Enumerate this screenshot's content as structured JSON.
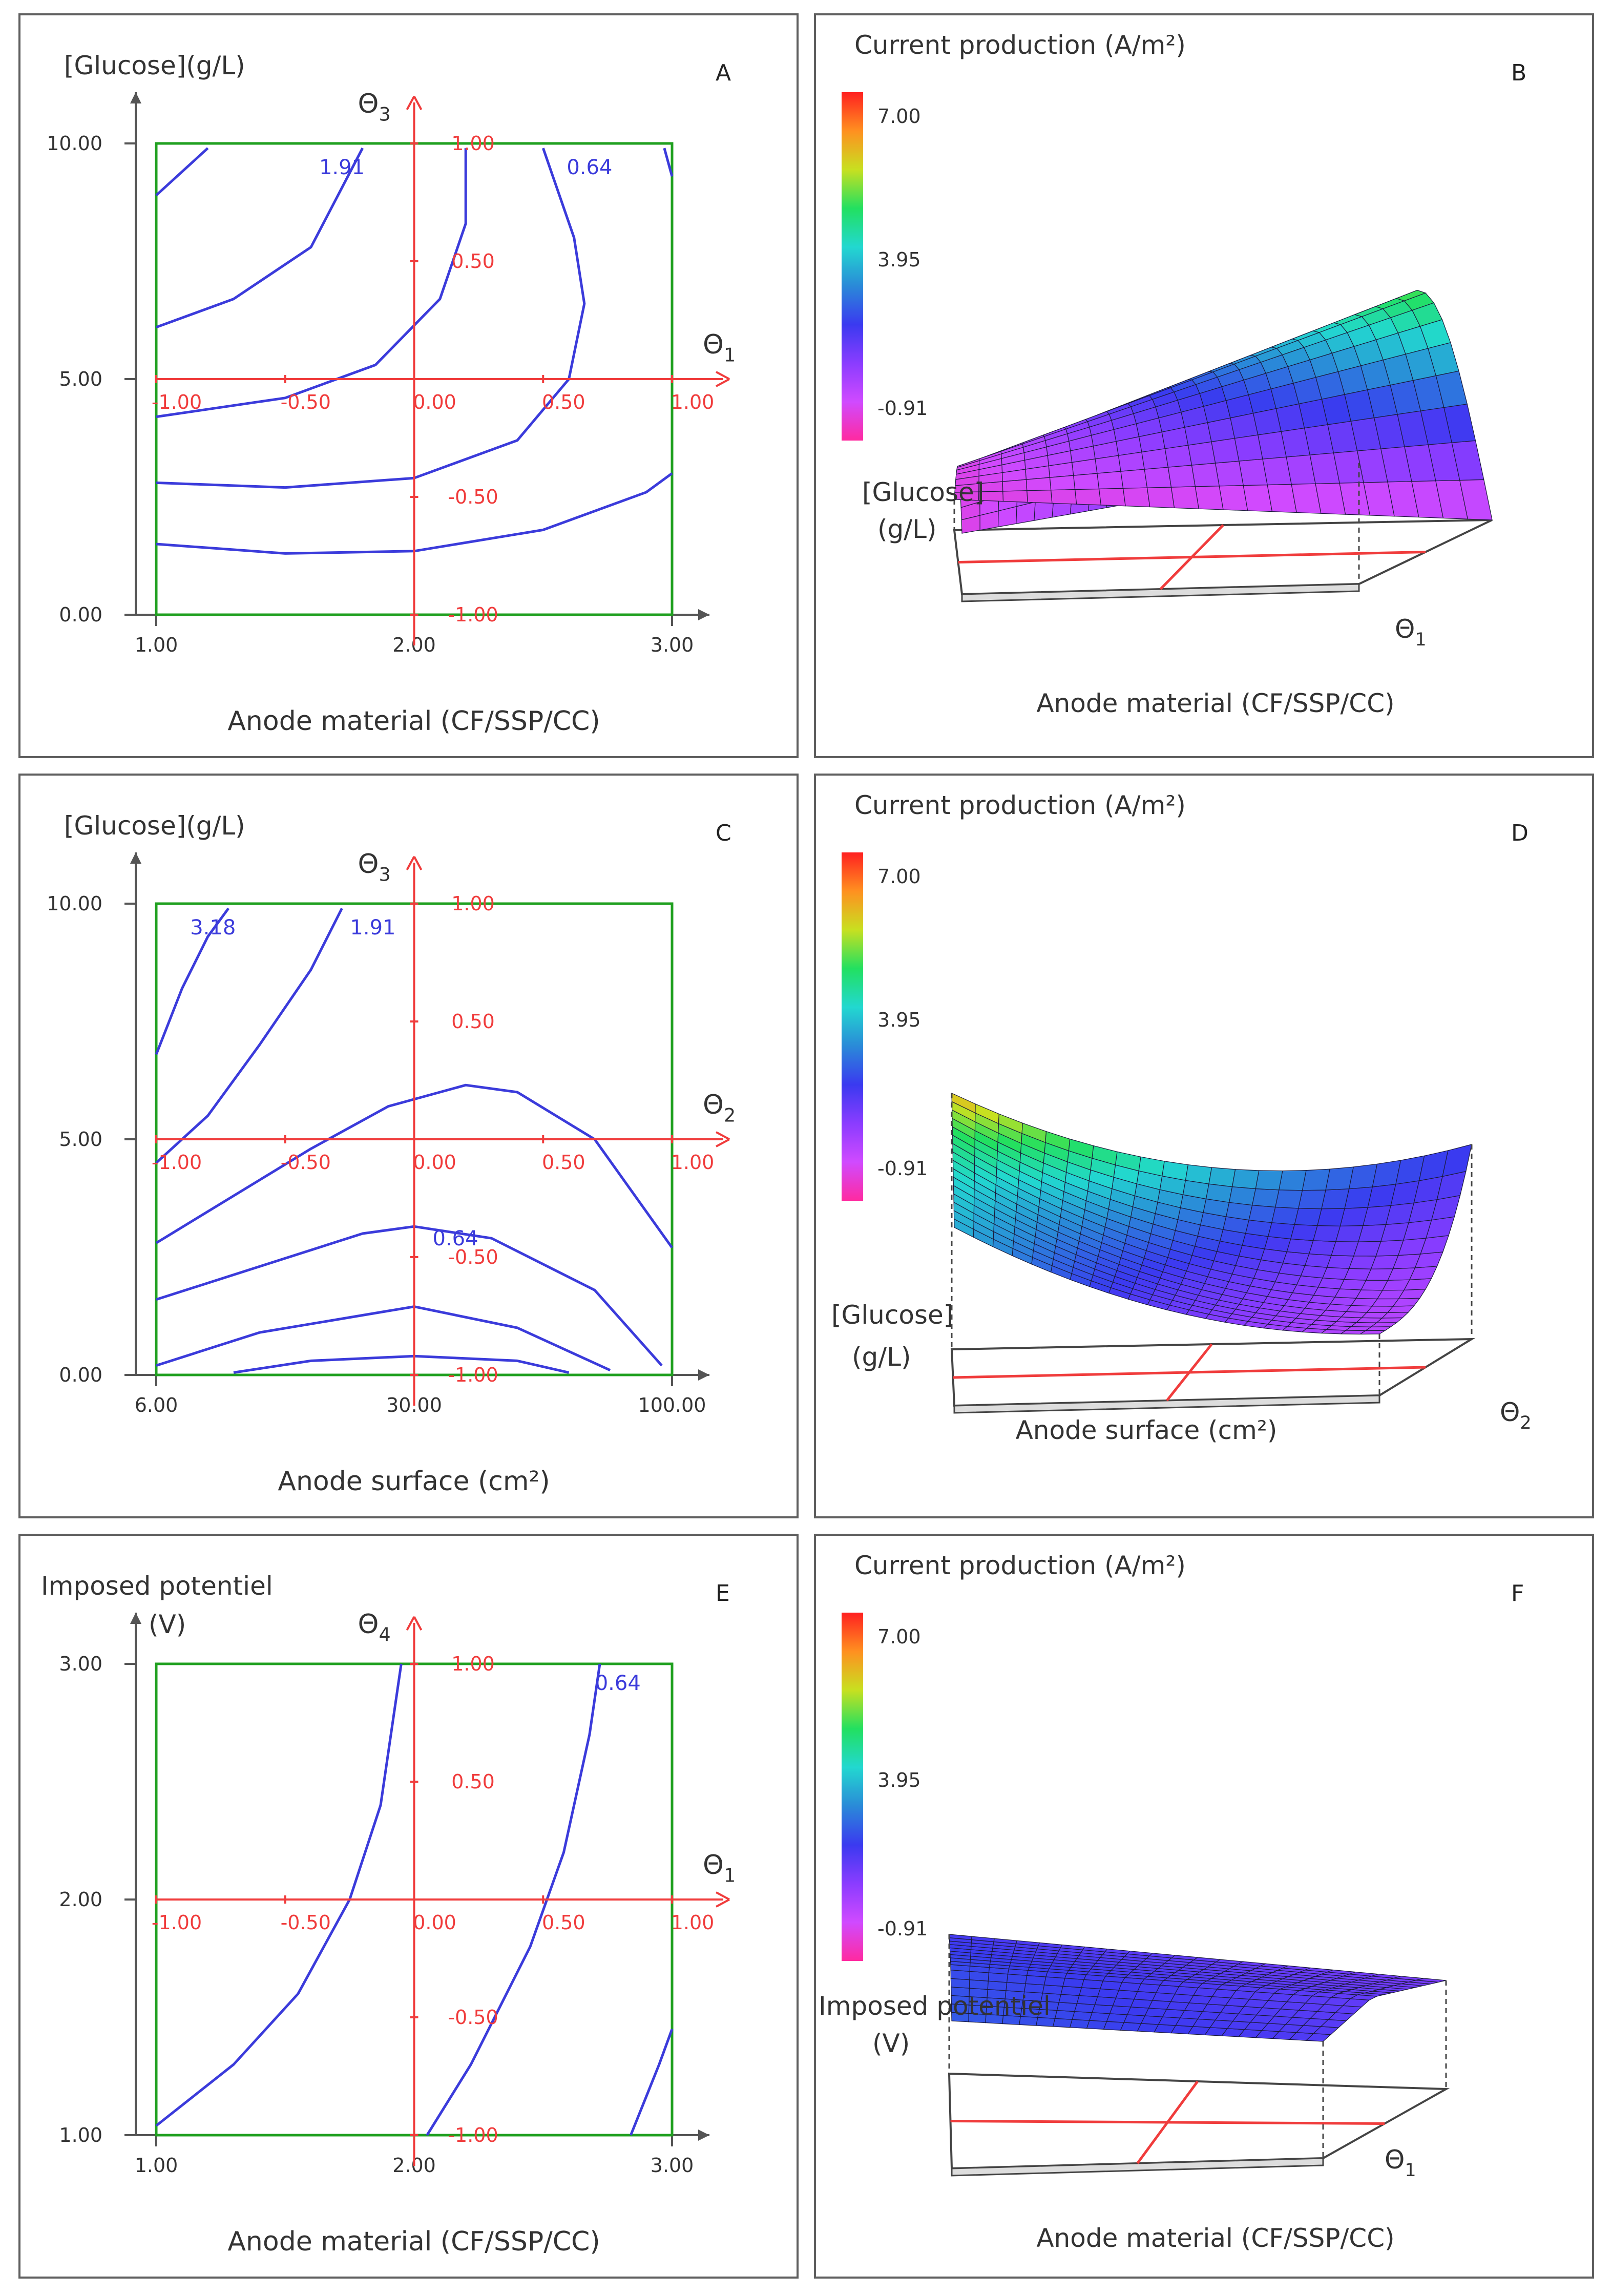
{
  "colors": {
    "frame": "#20a020",
    "contour": "#3b3bdb",
    "coded_axis": "#f03c3c",
    "axis": "#555555",
    "panel_border": "#5f5f5f",
    "colorbar": [
      "#ff2aa0",
      "#d04aff",
      "#8a3cff",
      "#3a3af0",
      "#2a8ad8",
      "#22d8d0",
      "#22e060",
      "#c8e020",
      "#ff9020",
      "#ff2020"
    ]
  },
  "chart_data": [
    {
      "panel": "A",
      "type": "contour",
      "ylabel": "[Glucose](g/L)",
      "xlabel": "Anode material (CF/SSP/CC)",
      "x_ticks": [
        "1.00",
        "2.00",
        "3.00"
      ],
      "y_ticks": [
        "0.00",
        "5.00",
        "10.00"
      ],
      "xlim": [
        1,
        3
      ],
      "ylim": [
        0,
        10
      ],
      "coded_x_label": "Θ",
      "coded_x_sub": "1",
      "coded_y_label": "Θ",
      "coded_y_sub": "3",
      "coded_x_ticks": [
        "-1.00",
        "-0.50",
        "0.00",
        "0.50",
        "1.00"
      ],
      "coded_y_ticks": [
        "-1.00",
        "-0.50",
        "0.50",
        "1.00"
      ],
      "contour_labels": [
        {
          "text": "1.91",
          "x": 1.72,
          "y": 9.5
        },
        {
          "text": "0.64",
          "x": 2.68,
          "y": 9.5
        }
      ],
      "contours": [
        [
          [
            1,
            8.9
          ],
          [
            1.2,
            9.9
          ]
        ],
        [
          [
            1,
            6.1
          ],
          [
            1.3,
            6.7
          ],
          [
            1.6,
            7.8
          ],
          [
            1.8,
            9.9
          ]
        ],
        [
          [
            1,
            4.2
          ],
          [
            1.5,
            4.6
          ],
          [
            1.85,
            5.3
          ],
          [
            2.1,
            6.7
          ],
          [
            2.2,
            8.3
          ],
          [
            2.2,
            9.9
          ]
        ],
        [
          [
            1,
            2.8
          ],
          [
            1.5,
            2.7
          ],
          [
            2.0,
            2.9
          ],
          [
            2.4,
            3.7
          ],
          [
            2.6,
            5.0
          ],
          [
            2.66,
            6.6
          ],
          [
            2.62,
            8.0
          ],
          [
            2.5,
            9.9
          ]
        ],
        [
          [
            1,
            1.5
          ],
          [
            1.5,
            1.3
          ],
          [
            2.0,
            1.35
          ],
          [
            2.5,
            1.8
          ],
          [
            2.9,
            2.6
          ],
          [
            3.0,
            3.0
          ]
        ],
        [
          [
            2.97,
            9.9
          ],
          [
            3.0,
            9.3
          ]
        ]
      ]
    },
    {
      "panel": "C",
      "type": "contour",
      "ylabel": "[Glucose](g/L)",
      "xlabel": "Anode surface (cm²)",
      "x_ticks": [
        "6.00",
        "30.00",
        "100.00"
      ],
      "y_ticks": [
        "0.00",
        "5.00",
        "10.00"
      ],
      "xlim": [
        0,
        1
      ],
      "ylim": [
        0,
        10
      ],
      "coded_x_label": "Θ",
      "coded_x_sub": "2",
      "coded_y_label": "Θ",
      "coded_y_sub": "3",
      "coded_x_ticks": [
        "-1.00",
        "-0.50",
        "0.00",
        "0.50",
        "1.00"
      ],
      "coded_y_ticks": [
        "-1.00",
        "-0.50",
        "0.50",
        "1.00"
      ],
      "contour_labels": [
        {
          "text": "3.18",
          "x": 0.11,
          "y": 9.5
        },
        {
          "text": "1.91",
          "x": 0.42,
          "y": 9.5
        }
      ],
      "inline_label": {
        "text": "0.64",
        "x": 0.58,
        "y": 2.9
      },
      "contours": [
        [
          [
            0,
            6.8
          ],
          [
            0.05,
            8.2
          ],
          [
            0.1,
            9.3
          ],
          [
            0.14,
            9.9
          ]
        ],
        [
          [
            0,
            4.5
          ],
          [
            0.1,
            5.5
          ],
          [
            0.2,
            7.0
          ],
          [
            0.3,
            8.6
          ],
          [
            0.36,
            9.9
          ]
        ],
        [
          [
            0,
            2.8
          ],
          [
            0.15,
            3.8
          ],
          [
            0.3,
            4.8
          ],
          [
            0.45,
            5.7
          ],
          [
            0.6,
            6.15
          ],
          [
            0.7,
            6.0
          ],
          [
            0.85,
            5.0
          ],
          [
            1.0,
            2.7
          ]
        ],
        [
          [
            0,
            1.6
          ],
          [
            0.2,
            2.3
          ],
          [
            0.4,
            3.0
          ],
          [
            0.5,
            3.15
          ],
          [
            0.65,
            2.9
          ],
          [
            0.85,
            1.8
          ],
          [
            0.98,
            0.2
          ]
        ],
        [
          [
            0,
            0.2
          ],
          [
            0.2,
            0.9
          ],
          [
            0.5,
            1.45
          ],
          [
            0.7,
            1.0
          ],
          [
            0.88,
            0.1
          ]
        ],
        [
          [
            0.15,
            0.05
          ],
          [
            0.3,
            0.3
          ],
          [
            0.5,
            0.4
          ],
          [
            0.7,
            0.3
          ],
          [
            0.8,
            0.05
          ]
        ]
      ]
    },
    {
      "panel": "E",
      "type": "contour",
      "ylabel": "Imposed potentiel",
      "ylabel2": "(V)",
      "xlabel": "Anode material (CF/SSP/CC)",
      "x_ticks": [
        "1.00",
        "2.00",
        "3.00"
      ],
      "y_ticks": [
        "1.00",
        "2.00",
        "3.00"
      ],
      "xlim": [
        1,
        3
      ],
      "ylim": [
        1,
        3
      ],
      "coded_x_label": "Θ",
      "coded_x_sub": "1",
      "coded_y_label": "Θ",
      "coded_y_sub": "4",
      "coded_x_ticks": [
        "-1.00",
        "-0.50",
        "0.00",
        "0.50",
        "1.00"
      ],
      "coded_y_ticks": [
        "-1.00",
        "-0.50",
        "0.50",
        "1.00"
      ],
      "contour_labels": [
        {
          "text": "0.64",
          "x": 2.79,
          "y": 2.92
        }
      ],
      "contours": [
        [
          [
            1,
            1.04
          ],
          [
            1.3,
            1.3
          ],
          [
            1.55,
            1.6
          ],
          [
            1.75,
            2.0
          ],
          [
            1.87,
            2.4
          ],
          [
            1.95,
            3.0
          ]
        ],
        [
          [
            2.05,
            1.0
          ],
          [
            2.22,
            1.3
          ],
          [
            2.45,
            1.8
          ],
          [
            2.58,
            2.2
          ],
          [
            2.68,
            2.7
          ],
          [
            2.72,
            3.0
          ]
        ],
        [
          [
            2.84,
            1.0
          ],
          [
            2.95,
            1.3
          ],
          [
            3.0,
            1.45
          ]
        ]
      ]
    }
  ],
  "surface_panels": [
    {
      "panel": "B",
      "title": "Current production (A/m²)",
      "colorbar_ticks": [
        "7.00",
        "3.95",
        "-0.91"
      ],
      "zlabel": "[Glucose]",
      "zlabel2": "(g/L)",
      "xlabel": "Anode material (CF/SSP/CC)",
      "theta": "Θ",
      "theta_sub": "1"
    },
    {
      "panel": "D",
      "title": "Current production (A/m²)",
      "colorbar_ticks": [
        "7.00",
        "3.95",
        "-0.91"
      ],
      "zlabel": "[Glucose]",
      "zlabel2": "(g/L)",
      "xlabel": "Anode surface (cm²)",
      "theta": "Θ",
      "theta_sub": "2"
    },
    {
      "panel": "F",
      "title": "Current production (A/m²)",
      "colorbar_ticks": [
        "7.00",
        "3.95",
        "-0.91"
      ],
      "zlabel": "Imposed potentiel",
      "zlabel2": "(V)",
      "xlabel": "Anode material (CF/SSP/CC)",
      "theta": "Θ",
      "theta_sub": "1"
    }
  ]
}
